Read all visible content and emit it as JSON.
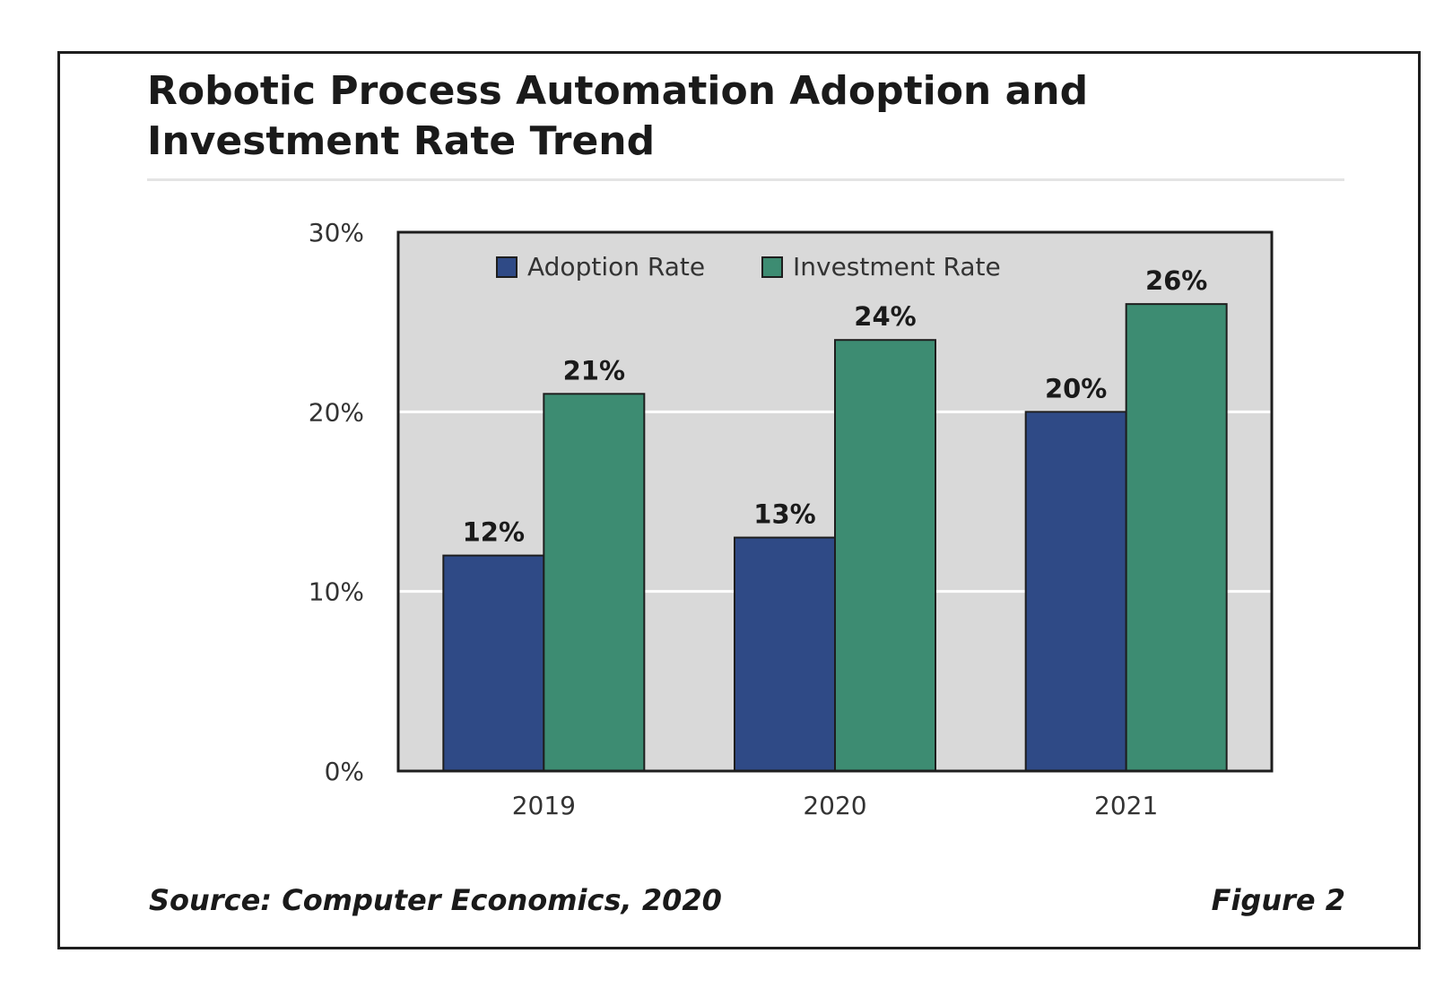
{
  "title": "Robotic Process Automation Adoption and Investment Rate Trend",
  "source": "Source: Computer Economics, 2020",
  "figure_label": "Figure 2",
  "colors": {
    "adoption": "#2f4a86",
    "investment": "#3d8c72",
    "plot_background": "#d9d9d9",
    "gridline": "#ffffff",
    "axis": "#1e1e1e"
  },
  "chart_data": {
    "type": "bar",
    "title": "Robotic Process Automation Adoption and Investment Rate Trend",
    "categories": [
      "2019",
      "2020",
      "2021"
    ],
    "series": [
      {
        "name": "Adoption Rate",
        "values": [
          12,
          13,
          20
        ],
        "labels": [
          "12%",
          "13%",
          "20%"
        ]
      },
      {
        "name": "Investment Rate",
        "values": [
          21,
          24,
          26
        ],
        "labels": [
          "21%",
          "24%",
          "26%"
        ]
      }
    ],
    "xlabel": "",
    "ylabel": "",
    "ylim": [
      0,
      30
    ],
    "yticks": [
      0,
      10,
      20,
      30
    ],
    "ytick_labels": [
      "0%",
      "10%",
      "20%",
      "30%"
    ],
    "grid": true,
    "legend_position": "top-center inside plot"
  }
}
